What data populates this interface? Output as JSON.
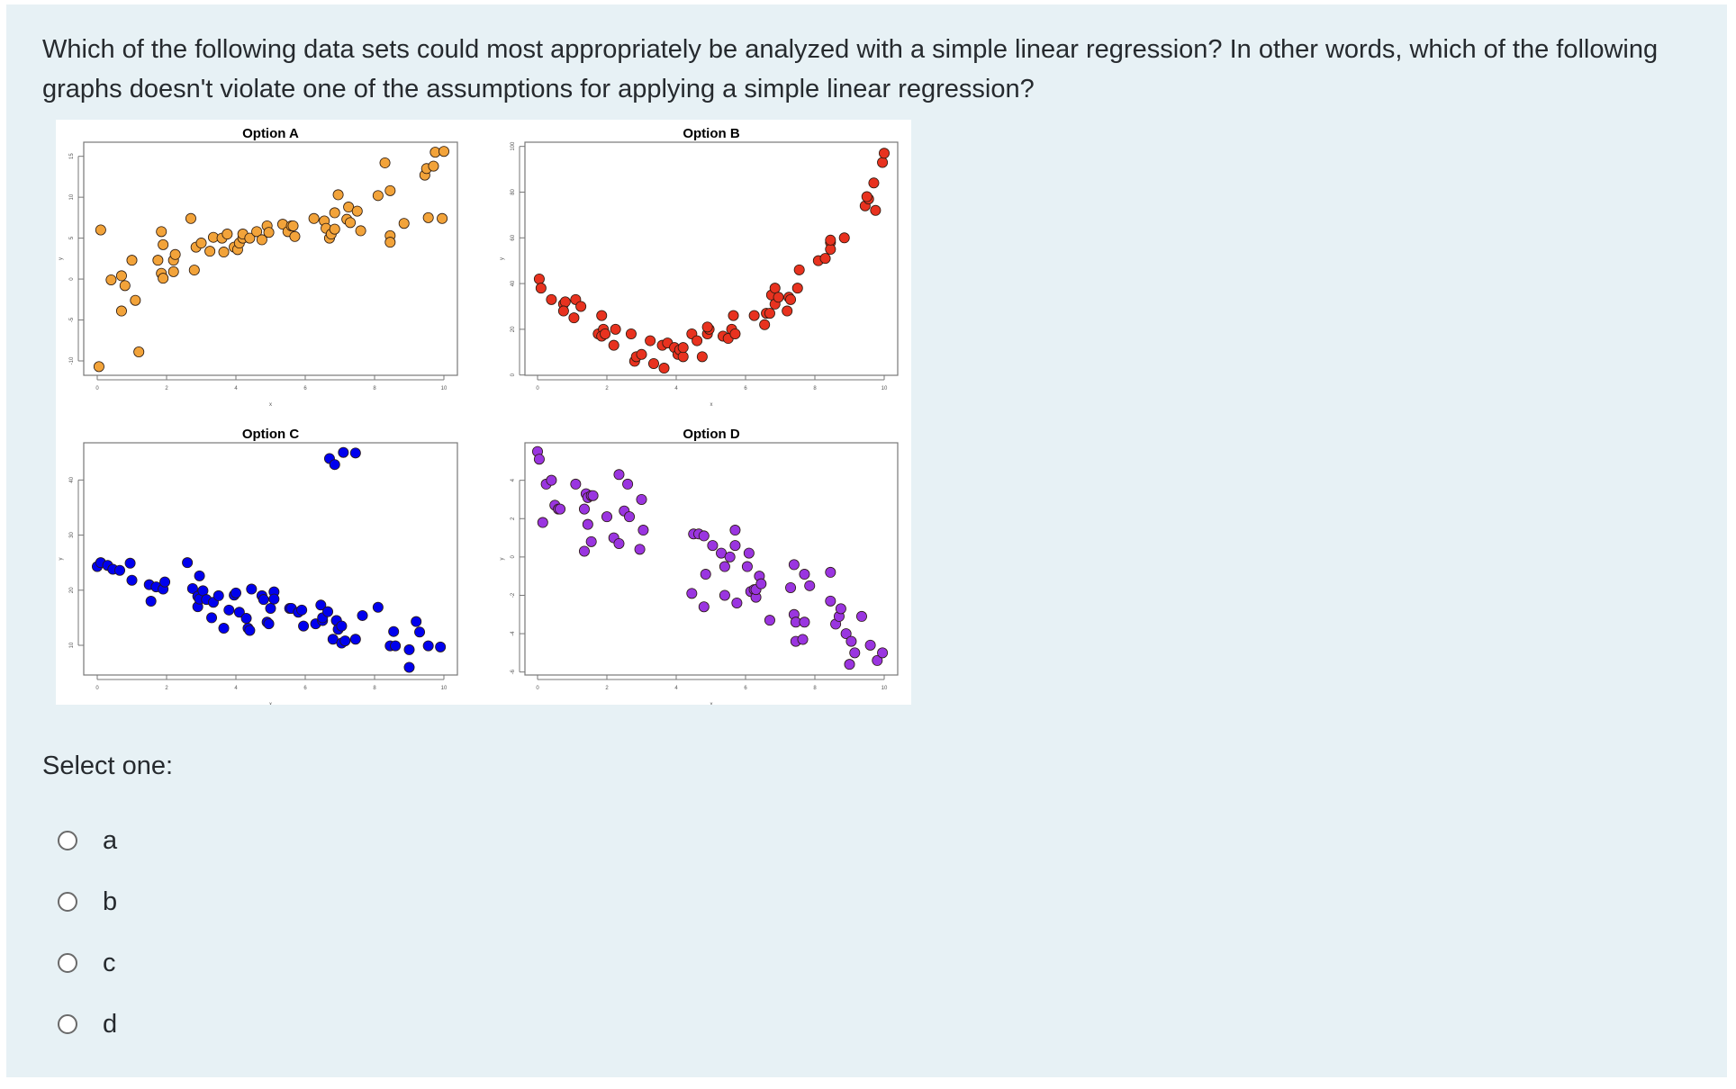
{
  "question": {
    "text": "Which of the following data sets could most appropriately be analyzed with a simple linear regression? In other words, which of the following graphs doesn't violate one of the assumptions for applying a simple linear regression?",
    "select_label": "Select one:",
    "options": [
      {
        "label": "a",
        "selected": false
      },
      {
        "label": "b",
        "selected": false
      },
      {
        "label": "c",
        "selected": false
      },
      {
        "label": "d",
        "selected": false
      }
    ]
  },
  "colors": {
    "background": "#e7f1f5",
    "text": "#262a2e",
    "option_a": "#f2a33a",
    "option_b": "#e8321f",
    "option_c": "#0000ee",
    "option_d": "#9a35e0"
  },
  "chart_data": [
    {
      "type": "scatter",
      "title": "Option A",
      "xlabel": "x",
      "ylabel": "y",
      "xlim": [
        0,
        10
      ],
      "ylim": [
        -11,
        16
      ],
      "xticks": [
        0,
        2,
        4,
        6,
        8,
        10
      ],
      "yticks": [
        -10,
        -5,
        0,
        5,
        10,
        15
      ],
      "color": "#f2a33a",
      "x": [
        0.1,
        0.05,
        0.4,
        0.7,
        0.7,
        0.8,
        1.0,
        1.1,
        1.2,
        1.75,
        1.85,
        1.9,
        1.85,
        1.9,
        2.2,
        2.2,
        2.25,
        2.7,
        2.8,
        2.85,
        3.0,
        3.25,
        3.35,
        3.6,
        3.65,
        3.75,
        3.95,
        4.05,
        4.1,
        4.2,
        4.2,
        4.4,
        4.6,
        4.75,
        4.9,
        4.95,
        5.35,
        5.5,
        5.6,
        5.65,
        5.7,
        6.25,
        6.55,
        6.6,
        6.7,
        6.75,
        6.85,
        6.85,
        6.95,
        7.2,
        7.25,
        7.3,
        7.5,
        7.6,
        8.1,
        8.3,
        8.45,
        8.45,
        8.45,
        8.85,
        9.45,
        9.5,
        9.55,
        9.7,
        9.75,
        9.95,
        10.0
      ],
      "y": [
        6.0,
        -10.7,
        -0.1,
        0.4,
        -3.9,
        -0.8,
        2.3,
        -2.6,
        -8.9,
        2.3,
        5.8,
        4.2,
        0.7,
        0.1,
        2.3,
        0.9,
        3.0,
        7.4,
        1.1,
        3.9,
        4.4,
        3.4,
        5.1,
        5.0,
        3.3,
        5.5,
        3.9,
        3.6,
        4.4,
        5.0,
        5.5,
        5.0,
        5.8,
        4.8,
        6.5,
        5.7,
        6.7,
        5.8,
        6.5,
        6.5,
        5.2,
        7.4,
        7.1,
        6.2,
        5.0,
        5.5,
        6.1,
        8.1,
        10.3,
        7.3,
        8.8,
        6.9,
        8.3,
        5.9,
        10.2,
        14.2,
        10.8,
        5.3,
        4.5,
        6.8,
        12.7,
        13.5,
        7.5,
        13.8,
        15.5,
        7.4,
        15.6
      ]
    },
    {
      "type": "scatter",
      "title": "Option B",
      "xlabel": "x",
      "ylabel": "y",
      "xlim": [
        0,
        10
      ],
      "ylim": [
        0,
        100
      ],
      "xticks": [
        0,
        2,
        4,
        6,
        8,
        10
      ],
      "yticks": [
        0,
        20,
        40,
        60,
        80,
        100
      ],
      "color": "#e8321f",
      "x": [
        0.05,
        0.1,
        0.4,
        0.75,
        0.8,
        0.75,
        1.05,
        1.1,
        1.25,
        1.75,
        1.85,
        1.9,
        1.85,
        1.95,
        2.2,
        2.25,
        2.7,
        2.8,
        2.85,
        3.0,
        3.25,
        3.35,
        3.6,
        3.65,
        3.75,
        3.95,
        4.05,
        4.1,
        4.2,
        4.2,
        4.45,
        4.6,
        4.75,
        4.9,
        4.95,
        4.9,
        5.35,
        5.5,
        5.6,
        5.65,
        5.7,
        6.25,
        6.55,
        6.6,
        6.7,
        6.75,
        6.85,
        6.85,
        6.95,
        7.2,
        7.25,
        7.3,
        7.5,
        7.55,
        8.1,
        8.3,
        8.45,
        8.45,
        8.45,
        8.85,
        9.45,
        9.55,
        9.5,
        9.7,
        9.75,
        9.95,
        10.0
      ],
      "y": [
        42,
        38,
        33,
        31,
        32,
        28,
        25,
        33,
        30,
        18,
        26,
        20,
        17,
        18,
        13,
        20,
        18,
        6,
        8,
        9,
        15,
        5,
        13,
        3,
        14,
        12,
        9,
        11,
        8,
        12,
        18,
        15,
        8,
        18,
        20,
        21,
        17,
        16,
        20,
        26,
        18,
        26,
        22,
        27,
        27,
        35,
        31,
        38,
        34,
        28,
        34,
        33,
        38,
        46,
        50,
        51,
        58,
        55,
        59,
        60,
        74,
        77,
        78,
        84,
        72,
        93,
        97
      ]
    },
    {
      "type": "scatter",
      "title": "Option C",
      "xlabel": "x",
      "ylabel": "y",
      "xlim": [
        0,
        10
      ],
      "ylim": [
        5,
        46
      ],
      "xticks": [
        0,
        2,
        4,
        6,
        8,
        10
      ],
      "yticks": [
        10,
        20,
        30,
        40
      ],
      "color": "#0000ee",
      "x": [
        0.0,
        0.1,
        0.3,
        0.45,
        0.65,
        0.95,
        1.0,
        1.5,
        1.55,
        1.7,
        1.9,
        1.95,
        2.6,
        2.75,
        2.9,
        2.9,
        2.95,
        2.95,
        3.05,
        3.15,
        3.3,
        3.35,
        3.5,
        3.65,
        3.8,
        3.95,
        4.0,
        4.1,
        4.3,
        4.35,
        4.4,
        4.45,
        4.75,
        4.8,
        4.9,
        4.95,
        5.0,
        5.1,
        5.1,
        5.55,
        5.6,
        5.8,
        5.9,
        5.95,
        6.3,
        6.45,
        6.5,
        6.5,
        6.65,
        6.7,
        6.8,
        6.85,
        6.9,
        6.9,
        6.95,
        7.05,
        7.05,
        7.1,
        7.15,
        7.45,
        7.45,
        7.65,
        8.1,
        8.45,
        8.55,
        8.6,
        9.0,
        9.0,
        9.2,
        9.3,
        9.55,
        9.9
      ],
      "y": [
        24.3,
        25.0,
        24.5,
        23.8,
        23.6,
        24.9,
        21.8,
        21.0,
        18.0,
        20.6,
        20.2,
        21.5,
        25.0,
        20.3,
        18.9,
        17.0,
        22.6,
        18.4,
        19.9,
        18.3,
        15.0,
        17.8,
        19.0,
        13.1,
        16.4,
        19.1,
        19.5,
        16.0,
        14.9,
        13.1,
        12.7,
        20.2,
        19.0,
        18.3,
        14.2,
        13.9,
        16.7,
        19.7,
        18.4,
        16.7,
        16.7,
        16.0,
        16.4,
        13.5,
        13.9,
        17.3,
        14.5,
        15.0,
        16.1,
        43.9,
        11.1,
        42.8,
        14.5,
        14.5,
        12.9,
        10.4,
        13.5,
        45.0,
        10.8,
        44.9,
        11.1,
        15.4,
        16.9,
        9.9,
        12.5,
        9.9,
        9.2,
        6.0,
        14.3,
        12.4,
        9.9,
        9.7
      ]
    },
    {
      "type": "scatter",
      "title": "Option D",
      "xlabel": "x",
      "ylabel": "y",
      "xlim": [
        0,
        10
      ],
      "ylim": [
        -6,
        5.6
      ],
      "xticks": [
        0,
        2,
        4,
        6,
        8,
        10
      ],
      "yticks": [
        -6,
        -4,
        -2,
        0,
        2,
        4
      ],
      "color": "#9a35e0",
      "x": [
        0.0,
        0.05,
        0.25,
        0.4,
        0.15,
        0.5,
        0.6,
        0.65,
        1.1,
        1.4,
        1.45,
        1.55,
        1.6,
        1.35,
        1.45,
        1.55,
        1.35,
        2.0,
        2.2,
        2.35,
        2.35,
        2.5,
        2.6,
        2.65,
        3.0,
        3.05,
        2.95,
        4.45,
        4.5,
        4.65,
        4.8,
        4.85,
        4.8,
        5.05,
        5.3,
        5.4,
        5.4,
        5.55,
        5.7,
        5.7,
        5.75,
        6.05,
        6.1,
        6.15,
        6.25,
        6.3,
        6.3,
        6.4,
        6.45,
        6.7,
        7.3,
        7.4,
        7.4,
        7.45,
        7.45,
        7.65,
        7.7,
        7.7,
        7.85,
        8.45,
        8.45,
        8.6,
        8.7,
        8.75,
        8.9,
        9.0,
        9.05,
        9.15,
        9.35,
        9.6,
        9.8,
        9.95
      ],
      "y": [
        5.5,
        5.1,
        3.8,
        4.0,
        1.8,
        2.7,
        2.5,
        2.5,
        3.8,
        3.3,
        3.1,
        3.2,
        3.2,
        2.5,
        1.7,
        0.8,
        0.3,
        2.1,
        1.0,
        4.3,
        0.7,
        2.4,
        3.8,
        2.1,
        3.0,
        1.4,
        0.4,
        -1.9,
        1.2,
        1.2,
        1.1,
        -0.9,
        -2.6,
        0.6,
        0.2,
        -0.5,
        -2.0,
        0.0,
        1.4,
        0.6,
        -2.4,
        -0.5,
        0.2,
        -1.8,
        -1.7,
        -2.1,
        -1.7,
        -1.0,
        -1.4,
        -3.3,
        -1.6,
        -0.4,
        -3.0,
        -3.4,
        -4.4,
        -4.3,
        -0.9,
        -3.4,
        -1.5,
        -0.8,
        -2.3,
        -3.5,
        -3.1,
        -2.7,
        -4.0,
        -5.6,
        -4.4,
        -5.0,
        -3.1,
        -4.6,
        -5.4,
        -5.0
      ]
    }
  ]
}
